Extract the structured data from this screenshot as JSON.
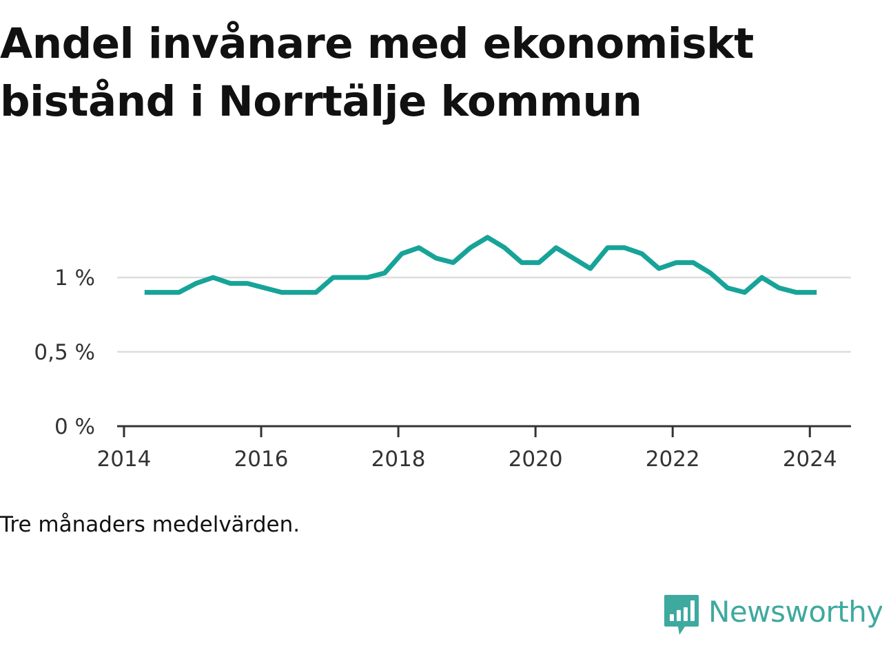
{
  "title": "Andel invånare med ekonomiskt bistånd i Norrtälje kommun",
  "note": "Tre månaders medelvärden.",
  "brand": {
    "name": "Newsworthy",
    "logo_icon": "bar-chart-speech-bubble-icon",
    "color": "#3ea99f"
  },
  "colors": {
    "line": "#17a398",
    "grid": "#dddddd",
    "axis": "#333333"
  },
  "chart_data": {
    "type": "line",
    "title": "Andel invånare med ekonomiskt bistånd i Norrtälje kommun",
    "xlabel": "",
    "ylabel": "",
    "x_unit": "year",
    "xlim": [
      2013.9,
      2024.6
    ],
    "ylim": [
      0,
      1.35
    ],
    "x_ticks": [
      2014,
      2016,
      2018,
      2020,
      2022,
      2024
    ],
    "x_tick_labels": [
      "2014",
      "2016",
      "2018",
      "2020",
      "2022",
      "2024"
    ],
    "y_ticks": [
      0,
      0.5,
      1
    ],
    "y_tick_labels": [
      "0 %",
      "0,5 %",
      "1 %"
    ],
    "grid": true,
    "series": [
      {
        "x": [
          2014.3,
          2014.55,
          2014.8,
          2015.05,
          2015.3,
          2015.55,
          2015.8,
          2016.05,
          2016.3,
          2016.55,
          2016.8,
          2017.05,
          2017.3,
          2017.55,
          2017.8,
          2018.05,
          2018.3,
          2018.55,
          2018.8,
          2019.05,
          2019.3,
          2019.55,
          2019.8,
          2020.05,
          2020.3,
          2020.55,
          2020.8,
          2021.05,
          2021.3,
          2021.55,
          2021.8,
          2022.05,
          2022.3,
          2022.55,
          2022.8,
          2023.05,
          2023.3,
          2023.55,
          2023.8,
          2024.1
        ],
        "values": [
          0.9,
          0.9,
          0.9,
          0.96,
          1.0,
          0.96,
          0.96,
          0.93,
          0.9,
          0.9,
          0.9,
          1.0,
          1.0,
          1.0,
          1.03,
          1.16,
          1.2,
          1.13,
          1.1,
          1.2,
          1.27,
          1.2,
          1.1,
          1.1,
          1.2,
          1.13,
          1.06,
          1.2,
          1.2,
          1.16,
          1.06,
          1.1,
          1.1,
          1.03,
          0.93,
          0.9,
          1.0,
          0.93,
          0.9,
          0.9
        ]
      }
    ]
  }
}
